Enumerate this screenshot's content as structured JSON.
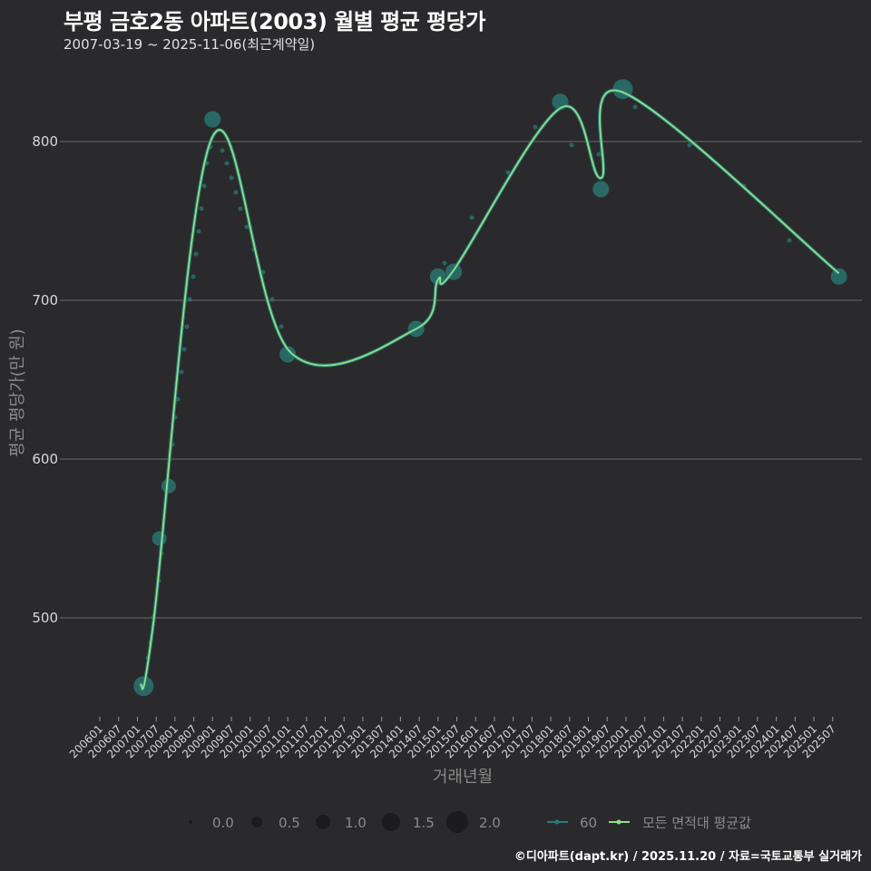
{
  "header": {
    "title": "부평 금호2동 아파트(2003) 월별 평균 평당가",
    "subtitle": "2007-03-19 ~ 2025-11-06(최근계약일)"
  },
  "footer": {
    "credit": "©디아파트(dapt.kr) / 2025.11.20 / 자료=국토교통부 실거래가"
  },
  "colors": {
    "background": "#2a2a2c",
    "grid": "#6a6a6a",
    "series_60": "#2a7d78",
    "series_all": "#8fe08a"
  },
  "legend": {
    "size_items": [
      "0.0",
      "0.5",
      "1.0",
      "1.5",
      "2.0"
    ],
    "series_items": [
      "60",
      "모든 면적대 평균값"
    ]
  },
  "chart_data": {
    "type": "line",
    "title": "부평 금호2동 아파트(2003) 월별 평균 평당가",
    "subtitle": "2007-03-19 ~ 2025-11-06(최근계약일)",
    "xlabel": "거래년월",
    "ylabel": "평균 평당가(만 원)",
    "ylim": [
      440,
      845
    ],
    "yticks": [
      500,
      600,
      700,
      800
    ],
    "xticks": [
      "200601",
      "200607",
      "200701",
      "200707",
      "200801",
      "200807",
      "200901",
      "200907",
      "201001",
      "201007",
      "201101",
      "201107",
      "201201",
      "201207",
      "201301",
      "201307",
      "201401",
      "201407",
      "201501",
      "201507",
      "201601",
      "201607",
      "201701",
      "201707",
      "201801",
      "201807",
      "201901",
      "201907",
      "202001",
      "202007",
      "202101",
      "202107",
      "202201",
      "202207",
      "202301",
      "202307",
      "202401",
      "202407",
      "202501",
      "202507"
    ],
    "grid": true,
    "legend_position": "bottom",
    "series": [
      {
        "name": "60",
        "kind": "points (size = transaction count)",
        "x": [
          "200703",
          "200708",
          "200711",
          "200901",
          "201101",
          "201406",
          "201501",
          "201506",
          "201804",
          "201905",
          "201912",
          "202509"
        ],
        "values": [
          457,
          550,
          583,
          814,
          666,
          682,
          715,
          718,
          825,
          770,
          833,
          715
        ]
      },
      {
        "name": "모든 면적대 평균값",
        "kind": "smoothed line",
        "x": [
          "200702",
          "200706",
          "200901",
          "201102",
          "201406",
          "201501",
          "201506",
          "201804",
          "201905",
          "201912",
          "202509"
        ],
        "values": [
          457,
          495,
          803,
          667,
          682,
          713,
          719,
          821,
          777,
          831,
          717
        ]
      }
    ]
  }
}
